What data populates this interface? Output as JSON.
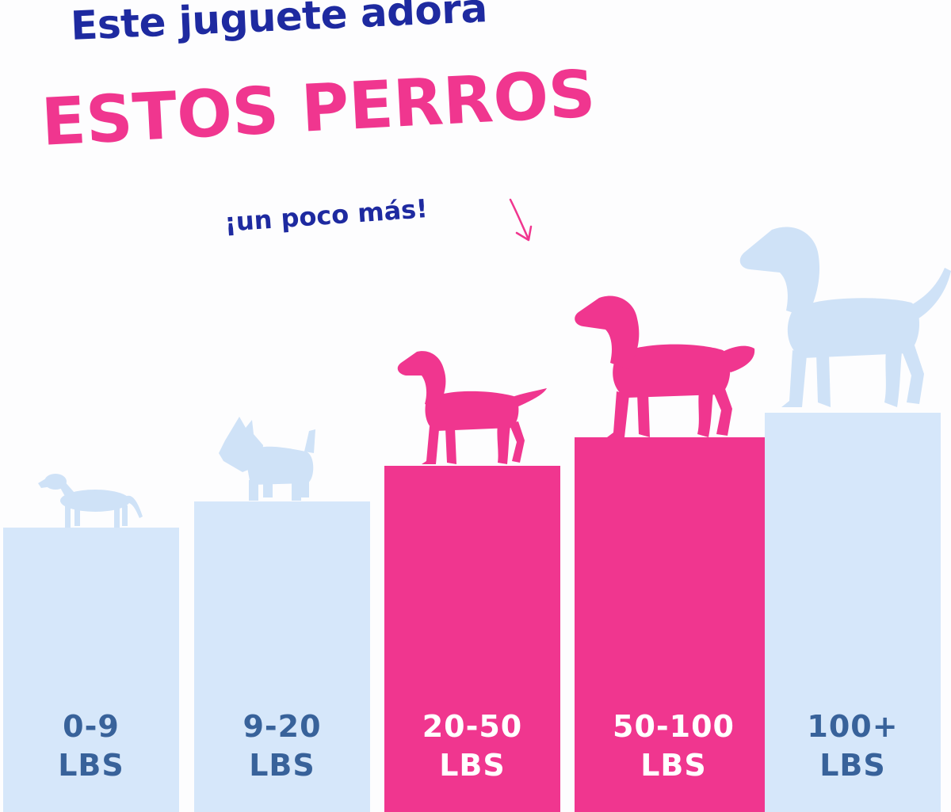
{
  "headline": {
    "line1": "Este juguete adora",
    "line2": "ESTOS PERROS",
    "line3": "¡un poco más!"
  },
  "colors": {
    "blue_text": "#1e2aa0",
    "pink": "#f0368f",
    "light_blue": "#d6e7fa",
    "label_blue": "#38629a",
    "label_on_pink": "#ffffff"
  },
  "bars": [
    {
      "range": "0-9",
      "unit": "LBS",
      "highlighted": false,
      "dog_icon": "dachshund-icon"
    },
    {
      "range": "9-20",
      "unit": "LBS",
      "highlighted": false,
      "dog_icon": "scottish-terrier-icon"
    },
    {
      "range": "20-50",
      "unit": "LBS",
      "highlighted": true,
      "dog_icon": "setter-icon"
    },
    {
      "range": "50-100",
      "unit": "LBS",
      "highlighted": true,
      "dog_icon": "golden-retriever-icon"
    },
    {
      "range": "100+",
      "unit": "LBS",
      "highlighted": false,
      "dog_icon": "great-dane-icon"
    }
  ]
}
